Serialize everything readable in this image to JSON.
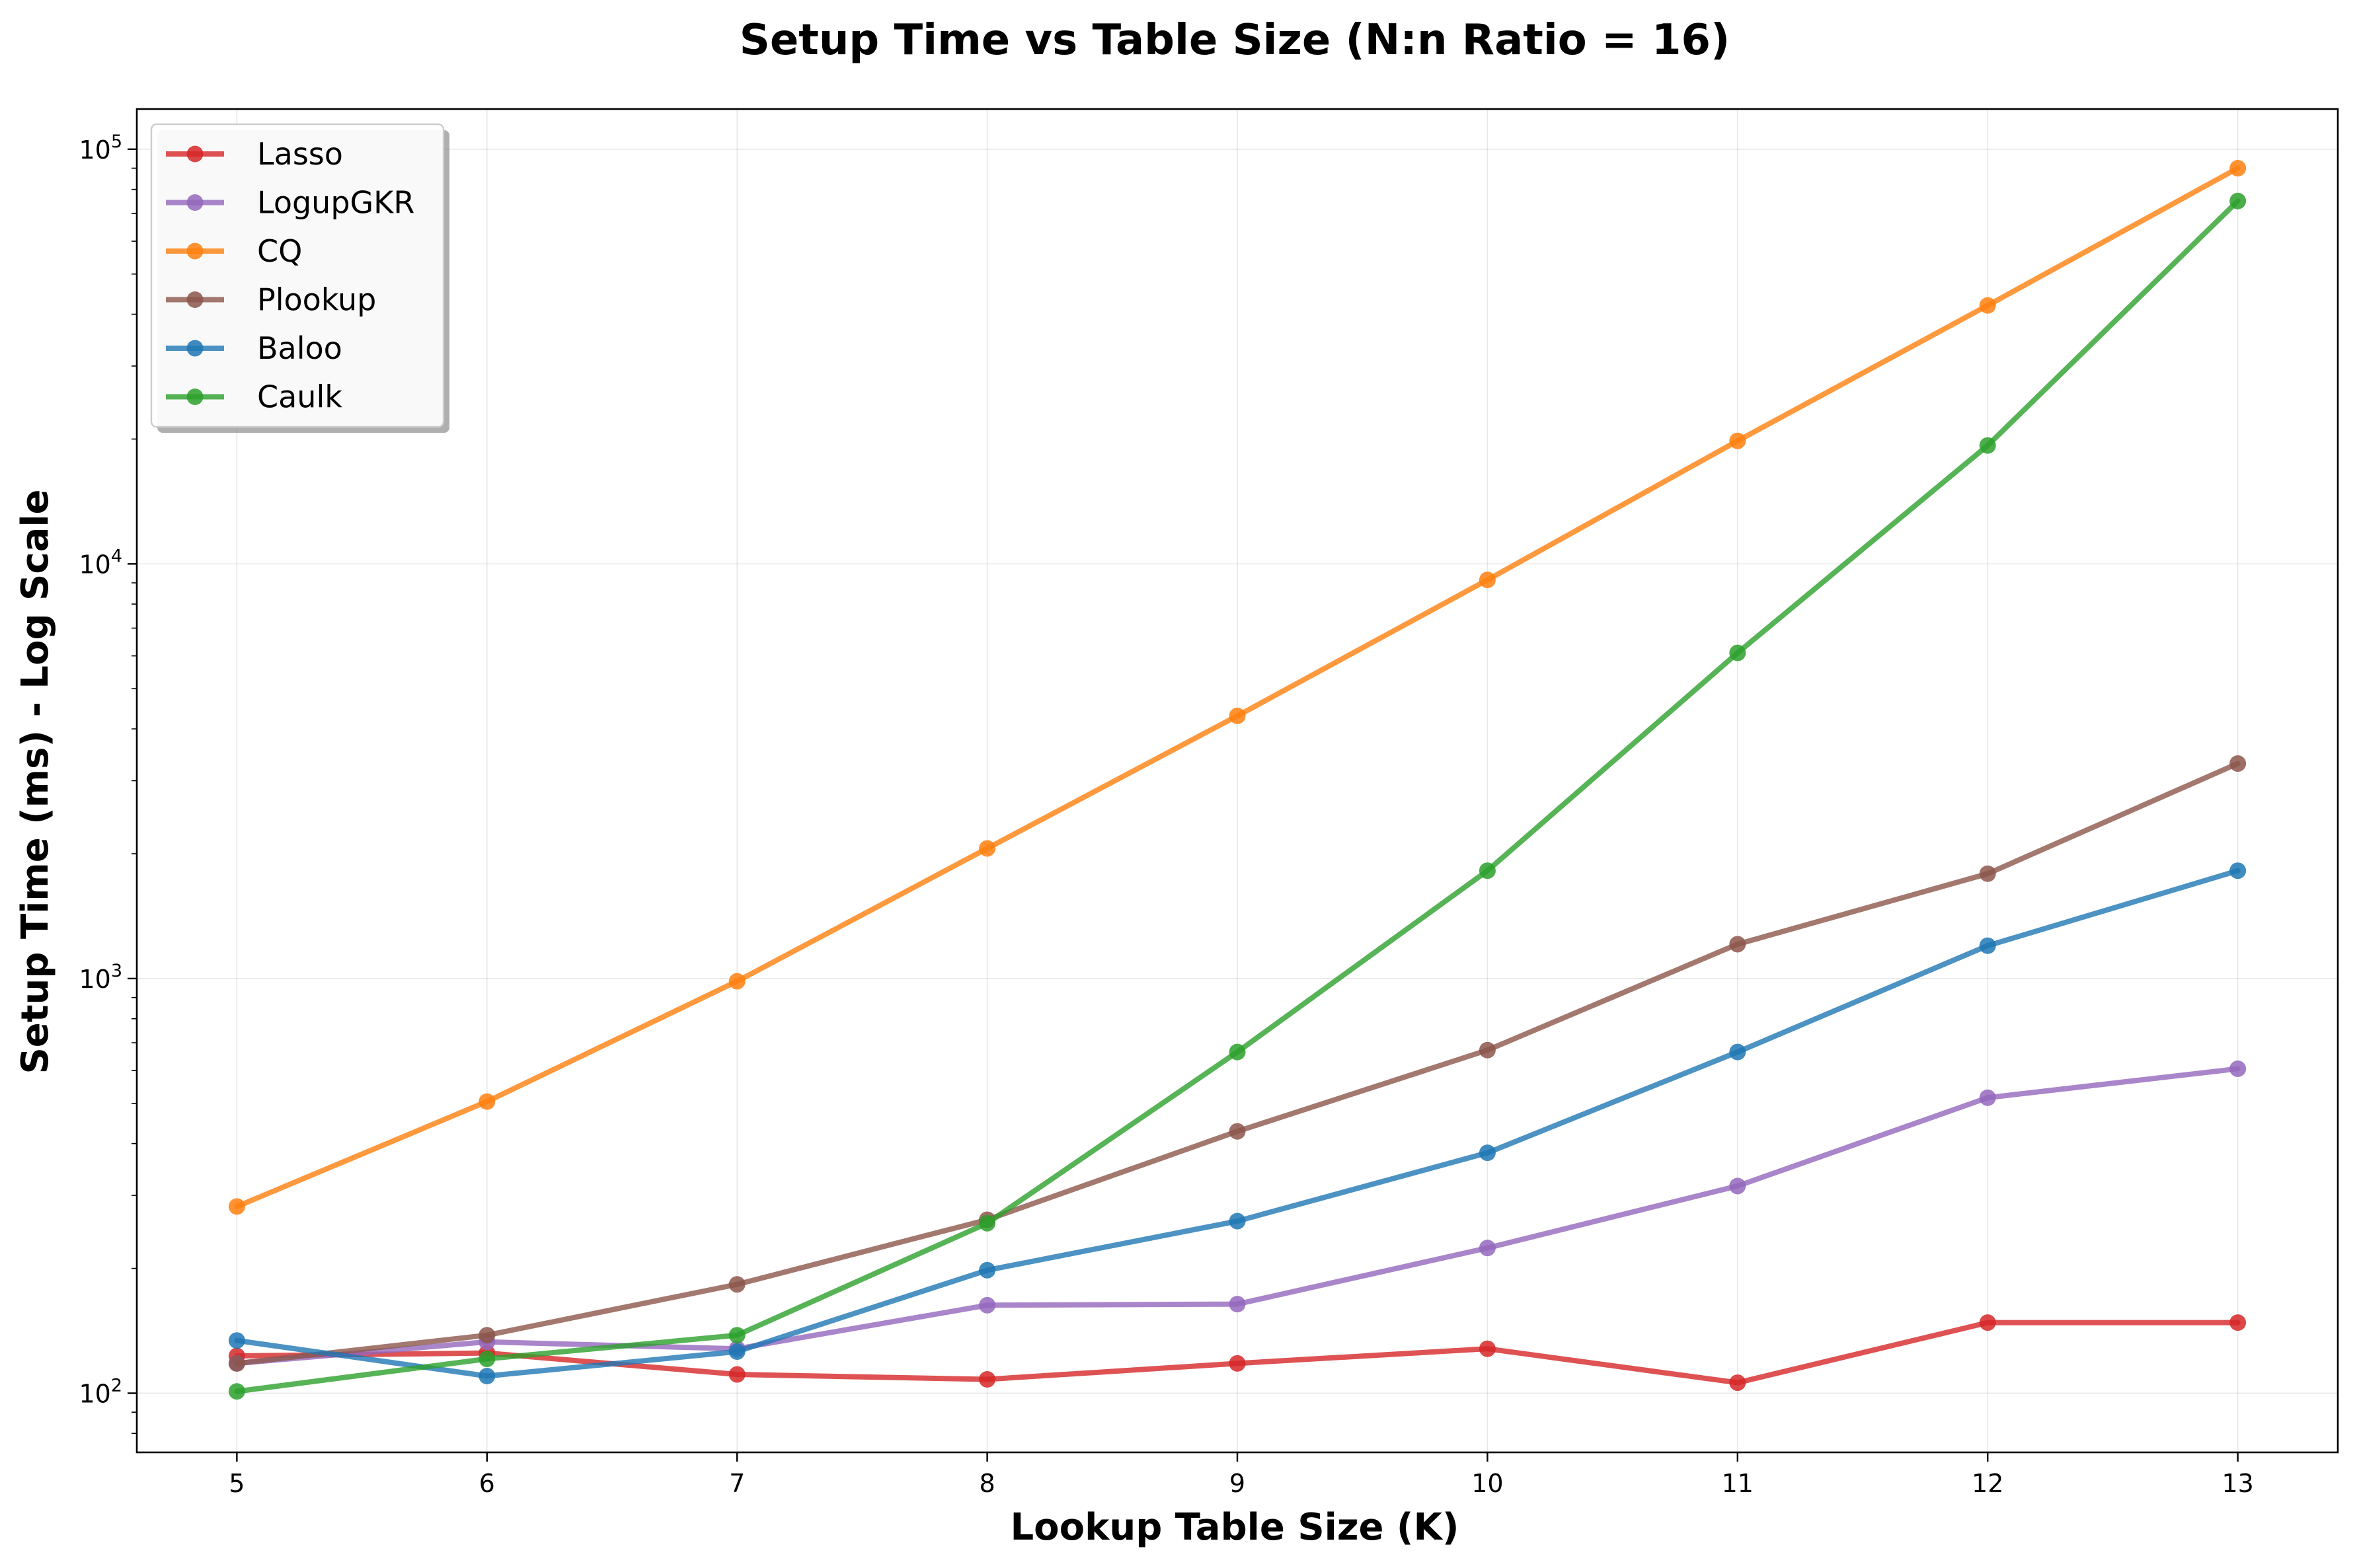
{
  "chart_data": {
    "type": "line",
    "title": "Setup Time vs Table Size (N:n Ratio = 16)",
    "xlabel": "Lookup Table Size (K)",
    "ylabel": "Setup Time (ms) - Log Scale",
    "x": [
      5,
      6,
      7,
      8,
      9,
      10,
      11,
      12,
      13
    ],
    "xlim": [
      4.6,
      13.4
    ],
    "ylim": [
      72,
      125000
    ],
    "yscale": "log",
    "y_ticks": [
      {
        "value": 100,
        "base": "10",
        "exp": "2"
      },
      {
        "value": 1000,
        "base": "10",
        "exp": "3"
      },
      {
        "value": 10000,
        "base": "10",
        "exp": "4"
      },
      {
        "value": 100000,
        "base": "10",
        "exp": "5"
      }
    ],
    "grid": true,
    "legend_position": "top-left",
    "series": [
      {
        "name": "Lasso",
        "color": "#d62728",
        "values": [
          123,
          125,
          111,
          108,
          118,
          128,
          106,
          148,
          148
        ]
      },
      {
        "name": "LogupGKR",
        "color": "#9467bd",
        "values": [
          118,
          133,
          128,
          163,
          164,
          224,
          316,
          516,
          606
        ]
      },
      {
        "name": "CQ",
        "color": "#ff7f0e",
        "values": [
          282,
          505,
          985,
          2060,
          4300,
          9150,
          19800,
          42000,
          90000
        ]
      },
      {
        "name": "Plookup",
        "color": "#8c564b",
        "values": [
          118,
          138,
          183,
          262,
          428,
          672,
          1210,
          1790,
          3300
        ]
      },
      {
        "name": "Baloo",
        "color": "#1f77b4",
        "values": [
          134,
          110,
          126,
          198,
          260,
          380,
          665,
          1200,
          1820
        ]
      },
      {
        "name": "Caulk",
        "color": "#2ca02c",
        "values": [
          101,
          121,
          138,
          257,
          665,
          1820,
          6100,
          19300,
          75000
        ]
      }
    ]
  }
}
